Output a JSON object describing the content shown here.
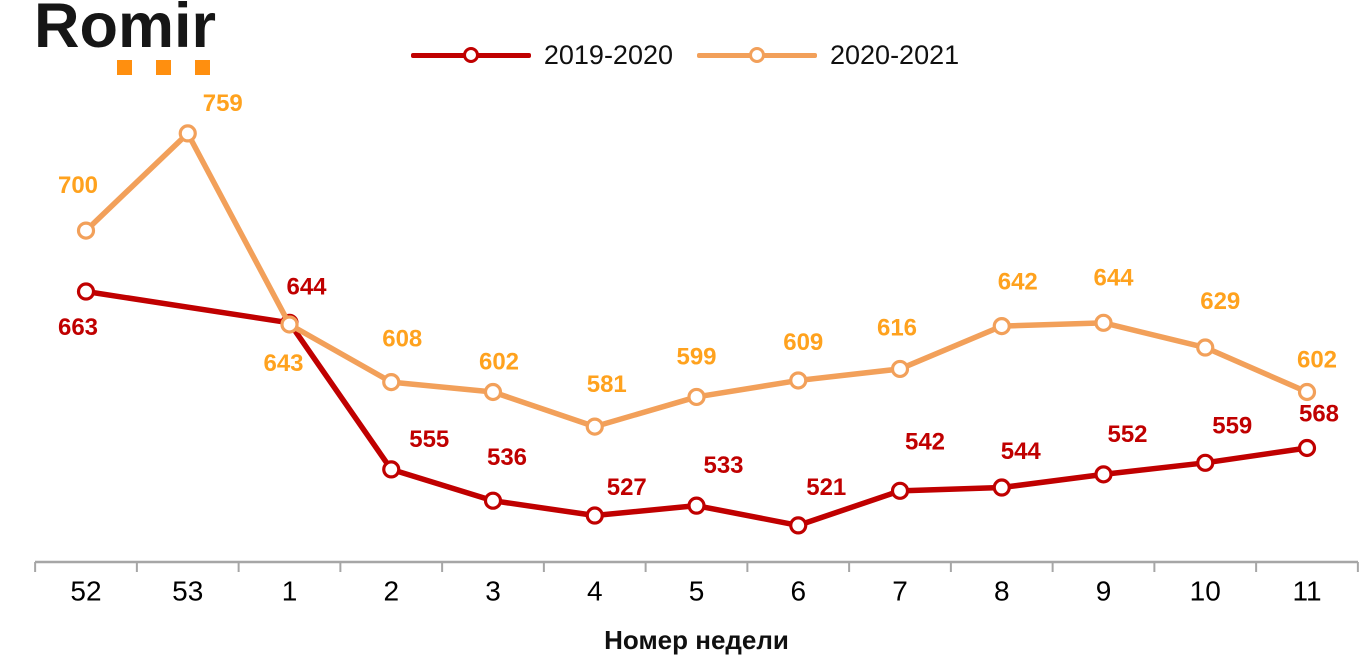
{
  "logo": {
    "text": "Romir",
    "dot_color": "#FF8F0F"
  },
  "legend": {
    "items": [
      {
        "label": "2019-2020",
        "color": "#C00000"
      },
      {
        "label": "2020-2021",
        "color": "#F2A05A"
      }
    ]
  },
  "chart_data": {
    "type": "line",
    "title": "",
    "xlabel": "Номер недели",
    "ylabel": "",
    "categories": [
      "52",
      "53",
      "1",
      "2",
      "3",
      "4",
      "5",
      "6",
      "7",
      "8",
      "9",
      "10",
      "11"
    ],
    "ylim": [
      500,
      840
    ],
    "grid": false,
    "legend_position": "top-center",
    "axis_color": "#A6A6A6",
    "tick_label_color": "#000000",
    "marker_style": "open-circle-white-fill",
    "series": [
      {
        "name": "2019-2020",
        "line_color": "#C00000",
        "label_color": "#C00000",
        "values": [
          663,
          null,
          644,
          555,
          536,
          527,
          533,
          521,
          542,
          544,
          552,
          559,
          568
        ],
        "label_dx": [
          -8,
          null,
          17,
          38,
          14,
          32,
          27,
          28,
          25,
          19,
          24,
          27,
          12
        ],
        "label_dy": [
          36,
          null,
          -36,
          -30,
          -43,
          -28,
          -40,
          -38,
          -49,
          -36,
          -40,
          -37,
          -34
        ]
      },
      {
        "name": "2020-2021",
        "line_color": "#F2A05A",
        "label_color": "#FFA21E",
        "values": [
          700,
          759,
          643,
          608,
          602,
          581,
          599,
          609,
          616,
          642,
          644,
          629,
          602
        ],
        "label_dx": [
          -8,
          35,
          -6,
          11,
          6,
          12,
          0,
          5,
          -3,
          16,
          10,
          15,
          10
        ],
        "label_dy": [
          -45,
          -30,
          39,
          -43,
          -30,
          -42,
          -40,
          -38,
          -41,
          -44,
          -45,
          -46,
          -32
        ]
      }
    ]
  }
}
